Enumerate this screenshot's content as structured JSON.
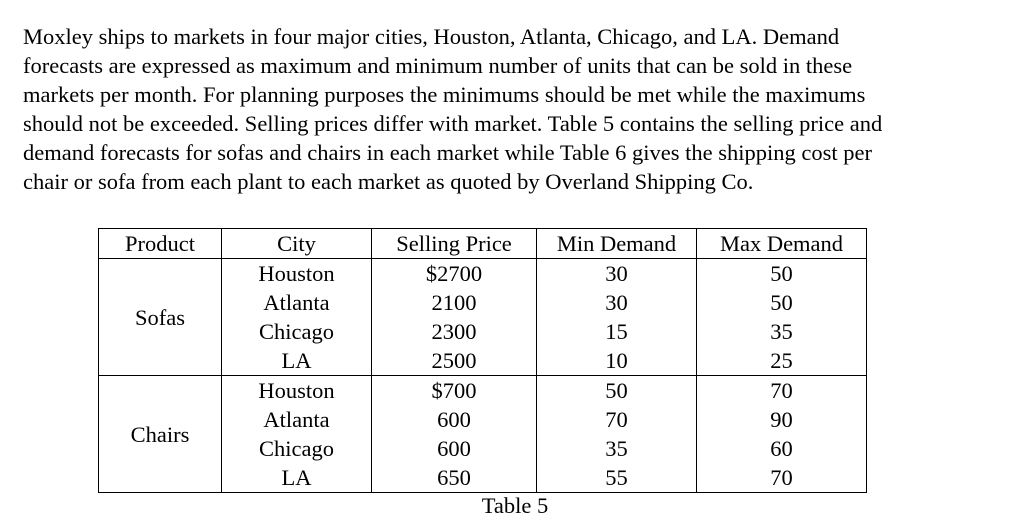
{
  "paragraph_lines": [
    "Moxley ships to markets in four major cities, Houston, Atlanta, Chicago, and LA. Demand",
    "forecasts are expressed as maximum and minimum number of units that can be sold in these",
    "markets per month. For planning purposes the minimums should be met  while the maximums",
    "should not be exceeded. Selling prices differ with market. Table 5 contains the selling price and",
    "demand forecasts for sofas and chairs in each market while Table 6 gives the shipping cost per",
    "chair or sofa from each plant to each market as quoted by Overland Shipping Co."
  ],
  "table": {
    "headers": [
      "Product",
      "City",
      "Selling Price",
      "Min Demand",
      "Max Demand"
    ],
    "groups": [
      {
        "product": "Sofas",
        "rows": [
          {
            "city": "Houston",
            "price": "$2700",
            "min": "30",
            "max": "50"
          },
          {
            "city": "Atlanta",
            "price": "2100",
            "min": "30",
            "max": "50"
          },
          {
            "city": "Chicago",
            "price": "2300",
            "min": "15",
            "max": "35"
          },
          {
            "city": "LA",
            "price": "2500",
            "min": "10",
            "max": "25"
          }
        ]
      },
      {
        "product": "Chairs",
        "rows": [
          {
            "city": "Houston",
            "price": "$700",
            "min": "50",
            "max": "70"
          },
          {
            "city": "Atlanta",
            "price": "600",
            "min": "70",
            "max": "90"
          },
          {
            "city": "Chicago",
            "price": "600",
            "min": "35",
            "max": "60"
          },
          {
            "city": "LA",
            "price": "650",
            "min": "55",
            "max": "70"
          }
        ]
      }
    ],
    "caption": "Table 5"
  }
}
